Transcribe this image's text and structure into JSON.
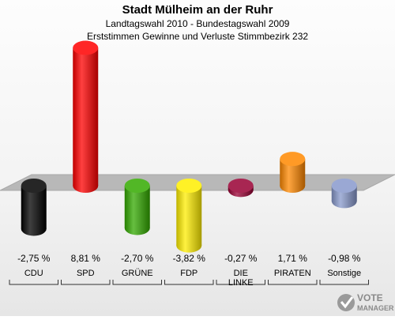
{
  "title": "Stadt Mülheim an der Ruhr",
  "subtitle": "Landtagswahl 2010 - Bundestagswahl 2009",
  "subtitle2": "Erststimmen Gewinne und Verluste Stimmbezirk 232",
  "chart_data": {
    "type": "bar",
    "categories": [
      "CDU",
      "SPD",
      "GRÜNE",
      "FDP",
      "DIE LINKE",
      "PIRATEN",
      "Sonstige"
    ],
    "values": [
      -2.75,
      8.81,
      -2.7,
      -3.82,
      -0.27,
      1.71,
      -0.98
    ],
    "value_labels": [
      "-2,75 %",
      "8,81 %",
      "-2,70 %",
      "-3,82 %",
      "-0,27 %",
      "1,71 %",
      "-0,98 %"
    ],
    "colors": [
      "#000000",
      "#ff0000",
      "#33aa00",
      "#ffee00",
      "#990033",
      "#ff8800",
      "#8899cc"
    ],
    "ylim": [
      -4,
      9
    ],
    "baseline": 0
  },
  "logo": {
    "line1": "VOTE",
    "line2": "MANAGER"
  }
}
